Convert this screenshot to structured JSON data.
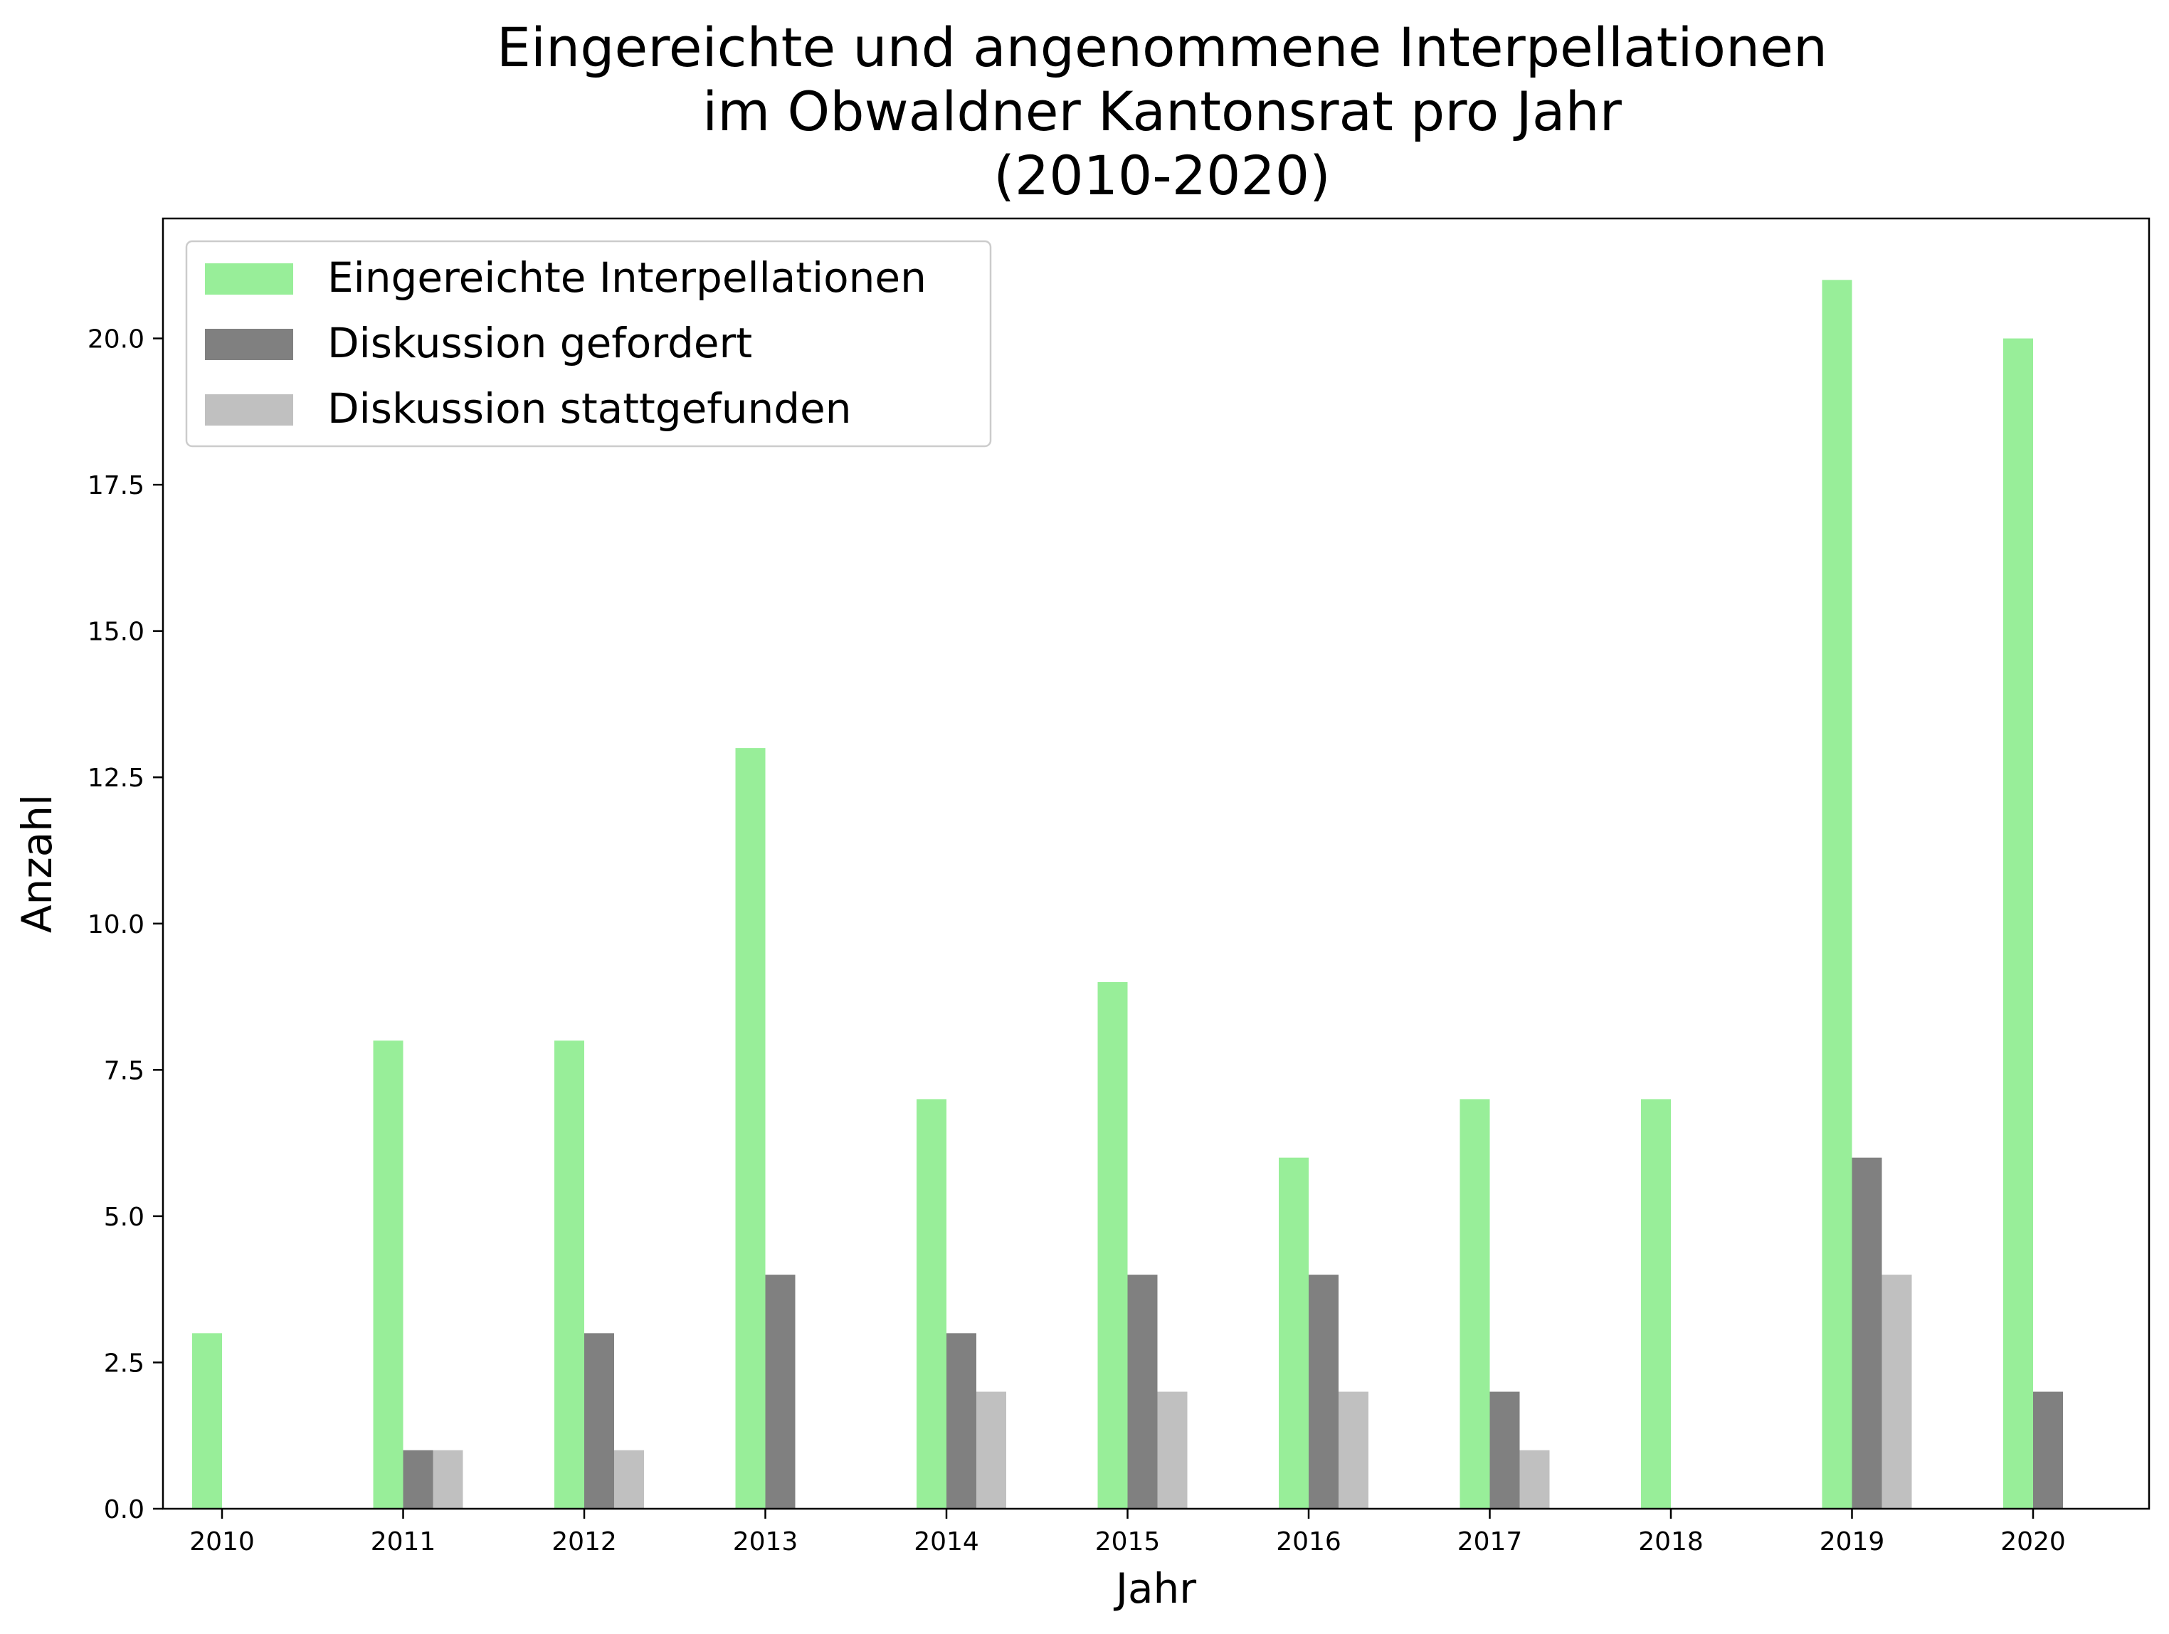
{
  "chart_data": {
    "type": "bar",
    "title_lines": [
      "Eingereichte und angenommene Interpellationen",
      "im Obwaldner Kantonsrat pro Jahr",
      "(2010-2020)"
    ],
    "xlabel": "Jahr",
    "ylabel": "Anzahl",
    "categories": [
      "2010",
      "2011",
      "2012",
      "2013",
      "2014",
      "2015",
      "2016",
      "2017",
      "2018",
      "2019",
      "2020"
    ],
    "yticks": [
      "0.0",
      "2.5",
      "5.0",
      "7.5",
      "10.0",
      "12.5",
      "15.0",
      "17.5",
      "20.0"
    ],
    "ylim": [
      0,
      22.05
    ],
    "grid": false,
    "legend": "top-left",
    "series": [
      {
        "name": "Eingereichte Interpellationen",
        "color": "#98ee99",
        "values": [
          3,
          8,
          8,
          13,
          7,
          9,
          6,
          7,
          7,
          21,
          20
        ]
      },
      {
        "name": "Diskussion gefordert",
        "color": "#808080",
        "values": [
          0,
          1,
          3,
          4,
          3,
          4,
          4,
          2,
          0,
          6,
          2
        ]
      },
      {
        "name": "Diskussion stattgefunden",
        "color": "#c0c0c0",
        "values": [
          0,
          1,
          1,
          0,
          2,
          2,
          2,
          1,
          0,
          4,
          0
        ]
      }
    ]
  }
}
